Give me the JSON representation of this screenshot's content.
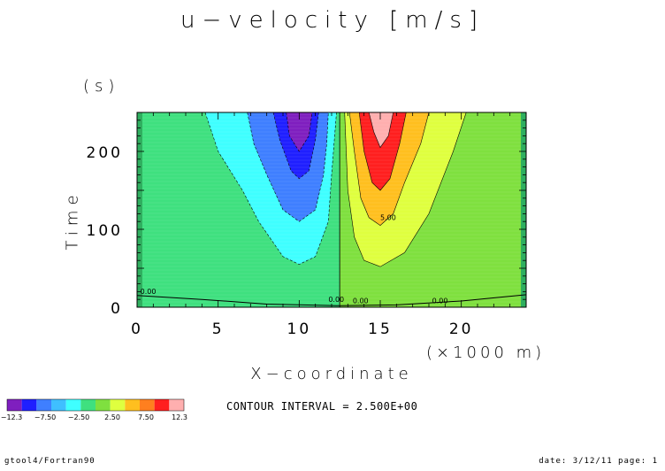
{
  "title": "u−velocity [m/s]",
  "footer": {
    "left": "gtool4/Fortran90",
    "right": "date: 3/12/11 page: 1"
  },
  "contour_interval_text": "CONTOUR INTERVAL = 2.500E+00",
  "chart_data": {
    "type": "heatmap",
    "title": "u−velocity [m/s]",
    "xlabel": "X−coordinate",
    "x_unit": "(×1000 m)",
    "ylabel": "Time",
    "y_unit": "(s)",
    "xlim": [
      0,
      24
    ],
    "ylim": [
      0,
      250
    ],
    "x_ticks": [
      0,
      5,
      10,
      15,
      20
    ],
    "y_ticks": [
      0,
      100,
      200
    ],
    "contour_interval": 2.5,
    "contour_labels": [
      "0.00",
      "0.00",
      "0.00",
      "0.00",
      "5.00"
    ],
    "colorbar": {
      "tick_labels": [
        "−12.3",
        "−7.50",
        "−2.50",
        "2.50",
        "7.50",
        "12.3"
      ],
      "colors": [
        "#7f1fbf",
        "#1f1fff",
        "#3f7fff",
        "#3fbfff",
        "#3fffff",
        "#3fe07f",
        "#7fe03f",
        "#dfff3f",
        "#ffbf1f",
        "#ff7f1f",
        "#ff1f1f",
        "#ffafaf"
      ]
    },
    "levels": [
      {
        "min": -12.3,
        "max": -10,
        "color": "#7f1fbf"
      },
      {
        "min": -10,
        "max": -7.5,
        "color": "#1f1fff"
      },
      {
        "min": -7.5,
        "max": -5,
        "color": "#3f7fff"
      },
      {
        "min": -5,
        "max": -2.5,
        "color": "#3fffff"
      },
      {
        "min": -2.5,
        "max": 0,
        "color": "#3fe07f"
      },
      {
        "min": 0,
        "max": 2.5,
        "color": "#7fe03f"
      },
      {
        "min": 2.5,
        "max": 5,
        "color": "#dfff3f"
      },
      {
        "min": 5,
        "max": 7.5,
        "color": "#ffbf1f"
      },
      {
        "min": 7.5,
        "max": 10,
        "color": "#ff1f1f"
      },
      {
        "min": 10,
        "max": 12.3,
        "color": "#ffafaf"
      }
    ],
    "regions": [
      {
        "name": "negative-lobe-2.5",
        "color": "#3fffff",
        "polygon": [
          [
            4.2,
            250
          ],
          [
            5,
            200
          ],
          [
            6.5,
            150
          ],
          [
            7.5,
            110
          ],
          [
            9,
            65
          ],
          [
            10,
            55
          ],
          [
            11,
            65
          ],
          [
            11.8,
            110
          ],
          [
            12,
            170
          ],
          [
            12.3,
            250
          ]
        ]
      },
      {
        "name": "negative-lobe-5",
        "color": "#3f7fff",
        "polygon": [
          [
            6.8,
            250
          ],
          [
            7.2,
            210
          ],
          [
            8,
            170
          ],
          [
            9,
            125
          ],
          [
            10,
            110
          ],
          [
            11,
            125
          ],
          [
            11.5,
            170
          ],
          [
            11.7,
            210
          ],
          [
            11.8,
            250
          ]
        ]
      },
      {
        "name": "negative-lobe-7.5",
        "color": "#1f1fff",
        "polygon": [
          [
            8.4,
            250
          ],
          [
            8.8,
            215
          ],
          [
            9.5,
            175
          ],
          [
            10,
            165
          ],
          [
            10.6,
            175
          ],
          [
            11,
            215
          ],
          [
            11.2,
            250
          ]
        ]
      },
      {
        "name": "negative-lobe-10",
        "color": "#7f1fbf",
        "polygon": [
          [
            9.2,
            250
          ],
          [
            9.4,
            220
          ],
          [
            10,
            200
          ],
          [
            10.6,
            220
          ],
          [
            10.8,
            250
          ]
        ]
      },
      {
        "name": "positive-lobe-0",
        "color": "#7fe03f",
        "polygon": [
          [
            12.5,
            0
          ],
          [
            24,
            0
          ],
          [
            24,
            250
          ],
          [
            12.5,
            250
          ]
        ]
      },
      {
        "name": "positive-lobe-2.5",
        "color": "#dfff3f",
        "polygon": [
          [
            12.8,
            250
          ],
          [
            13,
            150
          ],
          [
            13.4,
            90
          ],
          [
            14,
            60
          ],
          [
            15,
            52
          ],
          [
            16.5,
            70
          ],
          [
            18,
            120
          ],
          [
            19.5,
            200
          ],
          [
            20.3,
            250
          ]
        ]
      },
      {
        "name": "positive-lobe-5",
        "color": "#ffbf1f",
        "polygon": [
          [
            13.1,
            250
          ],
          [
            13.4,
            200
          ],
          [
            13.8,
            140
          ],
          [
            14.3,
            115
          ],
          [
            15,
            105
          ],
          [
            15.8,
            120
          ],
          [
            16.5,
            160
          ],
          [
            17.5,
            210
          ],
          [
            18,
            250
          ]
        ]
      },
      {
        "name": "positive-lobe-7.5",
        "color": "#ff1f1f",
        "polygon": [
          [
            13.7,
            250
          ],
          [
            14,
            200
          ],
          [
            14.5,
            160
          ],
          [
            15,
            150
          ],
          [
            15.6,
            165
          ],
          [
            16.2,
            210
          ],
          [
            16.6,
            250
          ]
        ]
      },
      {
        "name": "positive-lobe-10",
        "color": "#ffafaf",
        "polygon": [
          [
            14.3,
            250
          ],
          [
            14.6,
            225
          ],
          [
            15,
            205
          ],
          [
            15.5,
            220
          ],
          [
            15.8,
            250
          ]
        ]
      }
    ]
  }
}
